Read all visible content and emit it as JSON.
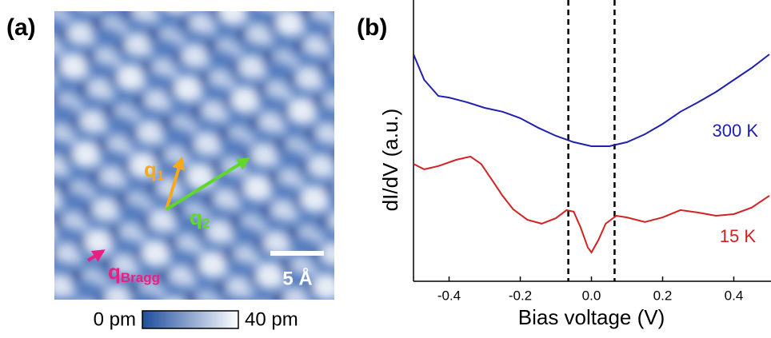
{
  "chart_data": [
    {
      "type": "image",
      "panel_label": "(a)",
      "annotations": [
        {
          "text": "q",
          "sub": "1",
          "color": "#f5a91f"
        },
        {
          "text": "q",
          "sub": "2",
          "color": "#5fd82a"
        },
        {
          "text": "q",
          "sub": "Bragg",
          "color": "#e8207f"
        }
      ],
      "scale_bar": "5 Å",
      "colorbar": {
        "clim": [
          0,
          40
        ],
        "ticks": [
          {
            "value": 0,
            "label": "0 pm"
          },
          {
            "value": 40,
            "label": "40 pm"
          }
        ],
        "colors": [
          "#1f4d9e",
          "#ffffff"
        ]
      }
    },
    {
      "type": "line",
      "panel_label": "(b)",
      "xlabel": "Bias voltage (V)",
      "ylabel": "dI/dV (a.u.)",
      "xlim": [
        -0.5,
        0.5
      ],
      "ylim": [
        0,
        10.35
      ],
      "xticks": [
        -0.4,
        -0.2,
        {
          "value": 0,
          "label": "0.0"
        },
        0.2,
        0.4
      ],
      "vlines": [
        -0.065,
        0.065
      ],
      "series": [
        {
          "name": "300 K",
          "color": "#2020b0",
          "x": [
            -0.5,
            -0.47,
            -0.43,
            -0.4,
            -0.35,
            -0.3,
            -0.25,
            -0.2,
            -0.15,
            -0.1,
            -0.05,
            0,
            0.05,
            0.1,
            0.15,
            0.2,
            0.25,
            0.3,
            0.35,
            0.4,
            0.45,
            0.5
          ],
          "values": [
            8.35,
            7.41,
            6.82,
            6.76,
            6.59,
            6.38,
            6.24,
            6.0,
            5.65,
            5.35,
            5.12,
            4.97,
            4.97,
            5.12,
            5.41,
            5.79,
            6.24,
            6.59,
            6.97,
            7.41,
            7.85,
            8.35
          ]
        },
        {
          "name": "15 K",
          "color": "#d42222",
          "x": [
            -0.5,
            -0.47,
            -0.43,
            -0.38,
            -0.34,
            -0.31,
            -0.28,
            -0.25,
            -0.22,
            -0.18,
            -0.14,
            -0.1,
            -0.07,
            -0.05,
            -0.03,
            -0.01,
            0,
            0.02,
            0.04,
            0.07,
            0.1,
            0.15,
            0.2,
            0.25,
            0.3,
            0.35,
            0.4,
            0.45,
            0.5
          ],
          "values": [
            4.32,
            4.12,
            4.24,
            4.47,
            4.59,
            4.32,
            3.74,
            3.15,
            2.65,
            2.26,
            2.12,
            2.32,
            2.62,
            2.56,
            1.97,
            1.24,
            1.06,
            1.53,
            2.12,
            2.41,
            2.35,
            2.18,
            2.35,
            2.62,
            2.53,
            2.41,
            2.47,
            2.71,
            3.15
          ]
        }
      ]
    }
  ]
}
